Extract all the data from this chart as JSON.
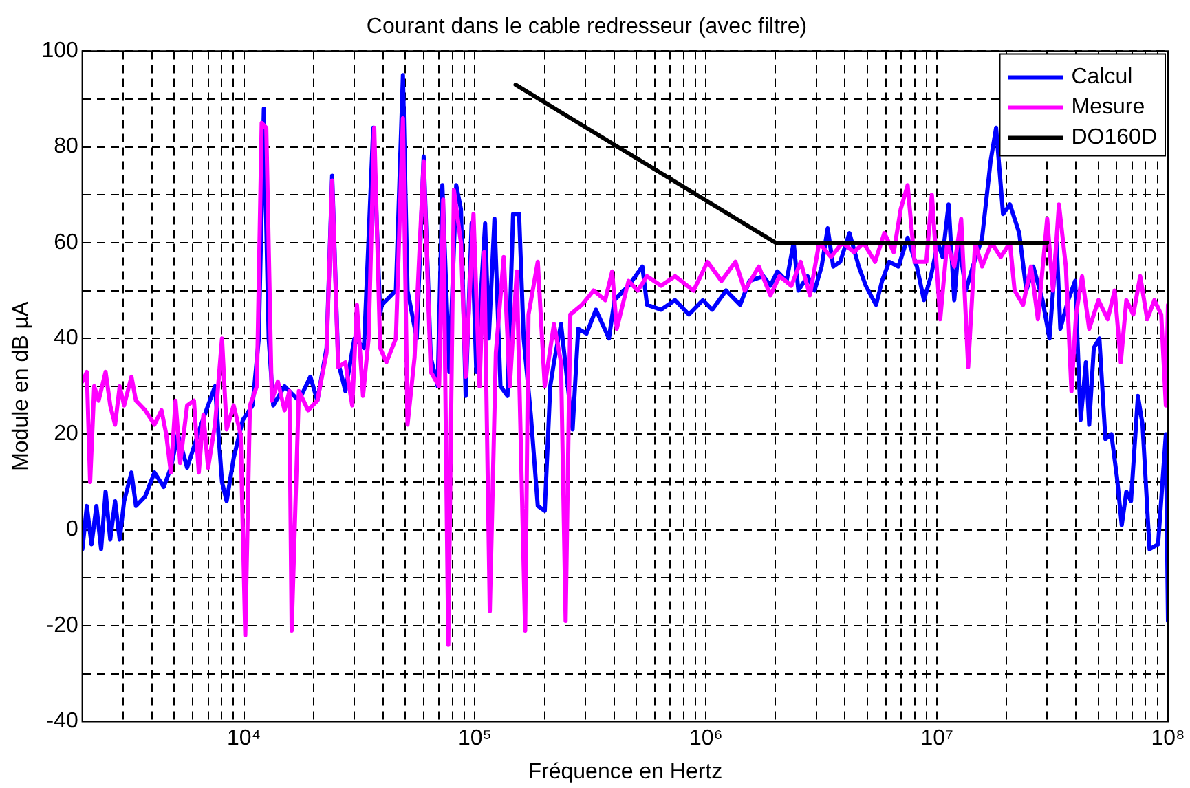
{
  "chart_data": {
    "type": "line",
    "title": "Courant dans le cable redresseur (avec filtre)",
    "xlabel": "Fréquence en Hertz",
    "ylabel": "Module en dB µA",
    "log": "x",
    "grid": true,
    "legend": "top right",
    "marker": "none",
    "line_style": "solid",
    "xlim": [
      2000,
      100000000
    ],
    "xticks": [
      {
        "value": 2000,
        "label": null
      },
      {
        "value": 3000,
        "label": null
      },
      {
        "value": 4000,
        "label": null
      },
      {
        "value": 5000,
        "label": null
      },
      {
        "value": 6000,
        "label": null
      },
      {
        "value": 7000,
        "label": null
      },
      {
        "value": 8000,
        "label": null
      },
      {
        "value": 9000,
        "label": null
      },
      {
        "value": 10000,
        "label": "10⁴"
      },
      {
        "value": 20000,
        "label": null
      },
      {
        "value": 30000,
        "label": null
      },
      {
        "value": 40000,
        "label": null
      },
      {
        "value": 50000,
        "label": null
      },
      {
        "value": 60000,
        "label": null
      },
      {
        "value": 70000,
        "label": null
      },
      {
        "value": 80000,
        "label": null
      },
      {
        "value": 90000,
        "label": null
      },
      {
        "value": 100000,
        "label": "10⁵"
      },
      {
        "value": 200000,
        "label": null
      },
      {
        "value": 300000,
        "label": null
      },
      {
        "value": 400000,
        "label": null
      },
      {
        "value": 500000,
        "label": null
      },
      {
        "value": 600000,
        "label": null
      },
      {
        "value": 700000,
        "label": null
      },
      {
        "value": 800000,
        "label": null
      },
      {
        "value": 900000,
        "label": null
      },
      {
        "value": 1000000,
        "label": "10⁶"
      },
      {
        "value": 2000000,
        "label": null
      },
      {
        "value": 3000000,
        "label": null
      },
      {
        "value": 4000000,
        "label": null
      },
      {
        "value": 5000000,
        "label": null
      },
      {
        "value": 6000000,
        "label": null
      },
      {
        "value": 7000000,
        "label": null
      },
      {
        "value": 8000000,
        "label": null
      },
      {
        "value": 9000000,
        "label": null
      },
      {
        "value": 10000000,
        "label": "10⁷"
      },
      {
        "value": 20000000,
        "label": null
      },
      {
        "value": 30000000,
        "label": null
      },
      {
        "value": 40000000,
        "label": null
      },
      {
        "value": 50000000,
        "label": null
      },
      {
        "value": 60000000,
        "label": null
      },
      {
        "value": 70000000,
        "label": null
      },
      {
        "value": 80000000,
        "label": null
      },
      {
        "value": 90000000,
        "label": null
      },
      {
        "value": 100000000,
        "label": "10⁸"
      }
    ],
    "ylim": [
      -40,
      100
    ],
    "yticks": [
      -40,
      {
        "value": -30,
        "label": null
      },
      -20,
      {
        "value": -10,
        "label": null
      },
      0,
      {
        "value": 10,
        "label": null
      },
      20,
      {
        "value": 30,
        "label": null
      },
      40,
      {
        "value": 50,
        "label": null
      },
      60,
      {
        "value": 70,
        "label": null
      },
      80,
      {
        "value": 90,
        "label": null
      },
      100
    ],
    "series": [
      {
        "name": "Calcul",
        "color": "#0000ff",
        "x": [
          2000,
          2090,
          2190,
          2300,
          2410,
          2520,
          2640,
          2770,
          2900,
          3030,
          3260,
          3410,
          3740,
          4100,
          4500,
          4830,
          5180,
          5680,
          6530,
          7500,
          8040,
          8420,
          9030,
          9900,
          10900,
          11600,
          12200,
          12800,
          13400,
          15000,
          17300,
          19400,
          20800,
          22800,
          24100,
          25600,
          27500,
          30100,
          33100,
          36300,
          38900,
          39500,
          45500,
          48800,
          51100,
          56000,
          60000,
          64400,
          69000,
          72300,
          77500,
          83000,
          87000,
          91200,
          96800,
          101400,
          110700,
          114900,
          121500,
          129000,
          138400,
          146300,
          155300,
          162600,
          174600,
          187100,
          200600,
          211900,
          219900,
          235900,
          264800,
          280000,
          304200,
          334100,
          380400,
          401900,
          462200,
          530800,
          555900,
          639400,
          734800,
          844000,
          969900,
          1064000,
          1223000,
          1406000,
          1542000,
          1774000,
          1901000,
          2037000,
          2234000,
          2397000,
          2512000,
          2754000,
          2952000,
          3167000,
          3365000,
          3556000,
          3811000,
          4180000,
          4588000,
          4918000,
          5448000,
          5784000,
          6205000,
          6808000,
          7465000,
          8185000,
          8782000,
          9418000,
          10090000,
          10570000,
          11230000,
          11880000,
          12440000,
          13330000,
          14290000,
          15680000,
          17060000,
          18030000,
          19320000,
          20700000,
          22700000,
          24380000,
          26120000,
          28640000,
          30690000,
          32960000,
          34200000,
          36970000,
          39630000,
          41880000,
          44120000,
          45590000,
          47740000,
          50460000,
          53590000,
          56900000,
          60120000,
          63070000,
          66040000,
          69150000,
          74100000,
          77600000,
          83200000,
          90600000,
          97900000,
          100000000
        ],
        "values": [
          -4,
          5,
          -3,
          5,
          -4,
          8,
          -2,
          6,
          -2,
          6,
          12,
          5,
          7,
          12,
          9,
          13,
          20,
          13,
          22,
          30,
          10,
          6,
          15,
          23,
          26,
          40,
          88,
          40,
          26,
          30,
          27,
          32,
          27,
          38,
          74,
          35,
          29,
          40,
          38,
          84,
          45,
          47,
          50,
          95,
          50,
          40,
          78,
          36,
          30,
          72,
          33,
          72,
          67,
          28,
          64,
          33,
          64,
          40,
          65,
          30,
          28,
          66,
          66,
          40,
          24,
          5,
          4,
          30,
          35,
          43,
          21,
          42,
          41,
          46,
          40,
          48,
          51,
          55,
          47,
          46,
          48,
          45,
          48,
          46,
          50,
          47,
          52,
          53,
          51,
          54,
          52,
          60,
          50,
          53,
          50,
          55,
          63,
          55,
          56,
          62,
          55,
          51,
          47,
          52,
          56,
          55,
          61,
          55,
          48,
          53,
          60,
          57,
          68,
          48,
          60,
          50,
          55,
          61,
          77,
          84,
          66,
          68,
          62,
          50,
          55,
          48,
          40,
          60,
          42,
          48,
          52,
          23,
          35,
          22,
          38,
          40,
          19,
          20,
          11,
          1,
          8,
          6,
          28,
          22,
          -4,
          -3,
          20,
          -19
        ]
      },
      {
        "name": "Mesure",
        "color": "#ff00ff",
        "x": [
          2000,
          2090,
          2160,
          2250,
          2350,
          2520,
          2640,
          2770,
          2900,
          3030,
          3260,
          3410,
          3740,
          4100,
          4400,
          4610,
          4830,
          5060,
          5300,
          5680,
          6080,
          6380,
          6680,
          7000,
          7500,
          8040,
          8420,
          9030,
          9680,
          10140,
          10620,
          11380,
          11940,
          12500,
          13210,
          14030,
          15000,
          15740,
          16100,
          17300,
          18970,
          20800,
          22800,
          24100,
          25600,
          27500,
          29460,
          30850,
          32790,
          34670,
          36660,
          38900,
          41400,
          45500,
          48800,
          51100,
          54800,
          60000,
          64400,
          70000,
          72900,
          76700,
          81100,
          87000,
          91200,
          98600,
          104700,
          109700,
          116000,
          123200,
          133300,
          141600,
          151800,
          165000,
          170600,
          187100,
          200600,
          219900,
          235900,
          247000,
          258800,
          290500,
          326300,
          366400,
          392800,
          411200,
          462200,
          506800,
          555900,
          639400,
          734800,
          884400,
          1016000,
          1167000,
          1342000,
          1472000,
          1694000,
          1901000,
          2084000,
          2342000,
          2570000,
          2818000,
          3092000,
          3475000,
          3900000,
          4377000,
          4806000,
          5395000,
          5918000,
          6501000,
          6966000,
          7465000,
          8000000,
          8995000,
          9506000,
          10330000,
          11070000,
          11880000,
          12730000,
          13650000,
          14630000,
          15680000,
          17220000,
          18880000,
          20700000,
          21680000,
          23590000,
          25530000,
          27350000,
          29990000,
          31770000,
          33730000,
          36130000,
          38210000,
          40000000,
          42460000,
          45590000,
          50000000,
          54830000,
          58770000,
          62470000,
          66040000,
          70760000,
          75830000,
          81250000,
          87300000,
          93500000,
          97900000,
          100000000
        ],
        "values": [
          31,
          33,
          10,
          30,
          27,
          33,
          26,
          22,
          30,
          26,
          32,
          27,
          25,
          22,
          25,
          20,
          12,
          27,
          14,
          26,
          27,
          12,
          24,
          13,
          22,
          40,
          21,
          26,
          20,
          -22,
          26,
          30,
          85,
          84,
          27,
          31,
          25,
          29,
          -21,
          29,
          25,
          27,
          37,
          73,
          34,
          35,
          26,
          47,
          28,
          40,
          84,
          38,
          35,
          40,
          86,
          22,
          36,
          77,
          33,
          30,
          69,
          -24,
          71,
          60,
          32,
          66,
          30,
          58,
          -17,
          37,
          57,
          30,
          54,
          -21,
          45,
          56,
          30,
          43,
          35,
          -19,
          45,
          47,
          50,
          48,
          54,
          42,
          52,
          50,
          53,
          51,
          53,
          50,
          56,
          52,
          56,
          50,
          55,
          49,
          53,
          51,
          56,
          49,
          60,
          57,
          60,
          58,
          60,
          56,
          62,
          58,
          67,
          72,
          56,
          56,
          70,
          44,
          60,
          55,
          65,
          34,
          60,
          55,
          60,
          57,
          60,
          50,
          47,
          55,
          44,
          65,
          50,
          68,
          55,
          29,
          45,
          53,
          42,
          48,
          44,
          50,
          35,
          48,
          45,
          53,
          44,
          48,
          45,
          26,
          47
        ]
      },
      {
        "name": "DO160D",
        "color": "#000000",
        "x": [
          150000,
          2000000,
          30000000
        ],
        "values": [
          93,
          60,
          60
        ]
      }
    ]
  }
}
